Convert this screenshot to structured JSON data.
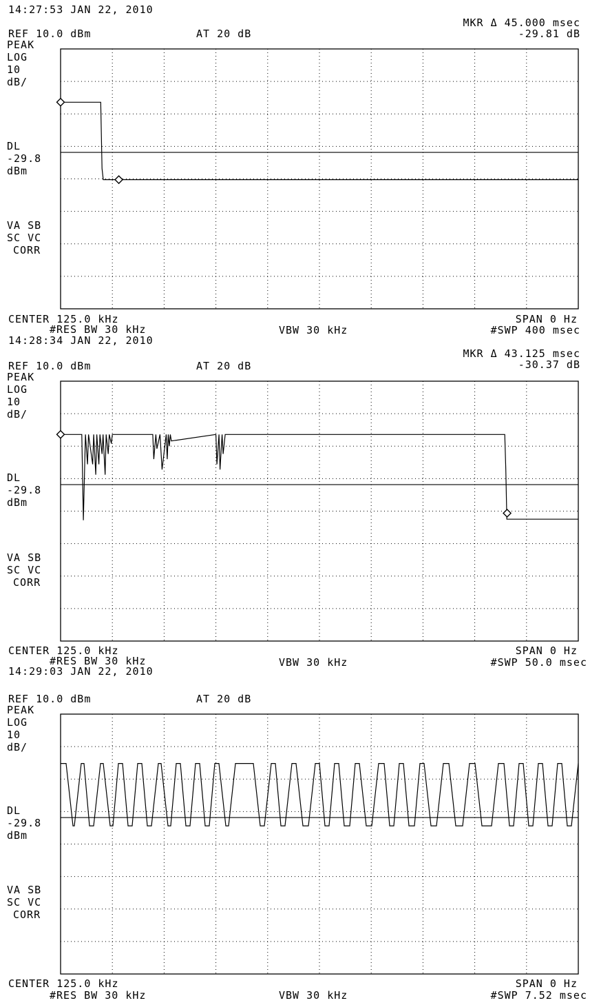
{
  "colors": {
    "background": "#ffffff",
    "trace": "#000000",
    "grid": "#000000"
  },
  "panels": [
    {
      "timestamp": "14:27:53 JAN 22, 2010",
      "marker_line1": "MKR Δ 45.000 msec",
      "marker_line2": "-29.81 dB",
      "ref": "REF 10.0 dBm",
      "atten": "AT 20 dB",
      "left_labels": {
        "peak": "PEAK",
        "log": "LOG",
        "scale_num": "10",
        "scale_unit": "dB/",
        "dl": "DL",
        "dl_value": "-29.8",
        "dl_unit": "dBm",
        "va_sb": "VA SB",
        "sc_vc": "SC VC",
        "corr": "CORR"
      },
      "center": "CENTER 125.0 kHz",
      "span": "SPAN 0 Hz",
      "res_bw": "#RES BW 30 kHz",
      "vbw": "VBW 30 kHz",
      "swp": "#SWP 400 msec"
    },
    {
      "timestamp": "14:28:34 JAN 22, 2010",
      "marker_line1": "MKR Δ 43.125 msec",
      "marker_line2": "-30.37 dB",
      "ref": "REF 10.0 dBm",
      "atten": "AT 20 dB",
      "left_labels": {
        "peak": "PEAK",
        "log": "LOG",
        "scale_num": "10",
        "scale_unit": "dB/",
        "dl": "DL",
        "dl_value": "-29.8",
        "dl_unit": "dBm",
        "va_sb": "VA SB",
        "sc_vc": "SC VC",
        "corr": "CORR"
      },
      "center": "CENTER 125.0 kHz",
      "span": "SPAN 0 Hz",
      "res_bw": "#RES BW 30 kHz",
      "vbw": "VBW 30 kHz",
      "swp": "#SWP 50.0 msec"
    },
    {
      "timestamp": "14:29:03 JAN 22, 2010",
      "marker_line1": "",
      "marker_line2": "",
      "ref": "REF 10.0 dBm",
      "atten": "AT 20 dB",
      "left_labels": {
        "peak": "PEAK",
        "log": "LOG",
        "scale_num": "10",
        "scale_unit": "dB/",
        "dl": "DL",
        "dl_value": "-29.8",
        "dl_unit": "dBm",
        "va_sb": "VA SB",
        "sc_vc": "SC VC",
        "corr": "CORR"
      },
      "center": "CENTER 125.0 kHz",
      "span": "SPAN 0 Hz",
      "res_bw": "#RES BW 30 kHz",
      "vbw": "VBW 30 kHz",
      "swp": "#SWP 7.52 msec"
    }
  ],
  "chart_data": [
    {
      "type": "line",
      "x_unit": "msec",
      "xlim": [
        0,
        400
      ],
      "ylim": [
        -90,
        10
      ],
      "y_unit": "dBm",
      "display_line": -29.8,
      "grid": true,
      "series": [
        {
          "x": [
            0,
            31,
            32,
            33,
            400
          ],
          "y": [
            -10.5,
            -10.5,
            -36,
            -40.3,
            -40.3
          ]
        }
      ],
      "markers": [
        {
          "x": 0,
          "y": -10.5
        },
        {
          "x": 45,
          "y": -40.3
        }
      ]
    },
    {
      "type": "line",
      "x_unit": "msec",
      "xlim": [
        0,
        50
      ],
      "ylim": [
        -90,
        10
      ],
      "y_unit": "dBm",
      "display_line": -29.8,
      "grid": true,
      "series": [
        {
          "x": [
            0,
            2.05,
            2.2,
            2.4,
            2.6,
            2.7,
            3.1,
            3.2,
            3.4,
            3.5,
            3.7,
            3.8,
            4.0,
            4.1,
            4.3,
            4.4,
            4.6,
            4.7,
            4.9,
            5.0,
            8.9,
            9.0,
            9.2,
            9.3,
            9.6,
            9.8,
            10.2,
            10.3,
            10.4,
            10.5,
            10.6,
            10.7,
            15.0,
            15.1,
            15.3,
            15.4,
            15.6,
            15.7,
            15.9,
            16.0,
            37.0,
            38.0,
            42.9,
            43.0,
            43.1,
            50.0
          ],
          "y": [
            -10.5,
            -10.5,
            -43.5,
            -10.5,
            -22,
            -10.5,
            -22,
            -10.5,
            -26,
            -10.5,
            -22,
            -10.5,
            -18,
            -10.5,
            -26,
            -10.5,
            -18,
            -10.5,
            -14,
            -10.5,
            -10.5,
            -20,
            -10.5,
            -16,
            -10.5,
            -24,
            -10.5,
            -20,
            -10.5,
            -15,
            -10.5,
            -13,
            -10.5,
            -22,
            -10.5,
            -24,
            -10.5,
            -18,
            -10.5,
            -10.5,
            -10.5,
            -10.5,
            -10.5,
            -24,
            -43.1,
            -43.1
          ]
        }
      ],
      "markers": [
        {
          "x": 0,
          "y": -10.5
        },
        {
          "x": 43.125,
          "y": -40.8
        }
      ]
    },
    {
      "type": "line",
      "x_unit": "msec",
      "xlim": [
        0,
        7.52
      ],
      "ylim": [
        -90,
        10
      ],
      "y_unit": "dBm",
      "display_line": -29.8,
      "grid": true,
      "series": [
        {
          "x": [
            0.0,
            0.08,
            0.18,
            0.2,
            0.3,
            0.34,
            0.42,
            0.48,
            0.58,
            0.62,
            0.72,
            0.76,
            0.84,
            0.9,
            0.98,
            1.04,
            1.12,
            1.18,
            1.26,
            1.32,
            1.42,
            1.46,
            1.56,
            1.6,
            1.68,
            1.74,
            1.82,
            1.88,
            1.96,
            2.02,
            2.1,
            2.16,
            2.24,
            2.3,
            2.4,
            2.44,
            2.54,
            2.8,
            2.9,
            2.96,
            3.06,
            3.12,
            3.2,
            3.26,
            3.36,
            3.42,
            3.52,
            3.6,
            3.7,
            3.76,
            3.84,
            3.9,
            3.98,
            4.04,
            4.12,
            4.2,
            4.28,
            4.34,
            4.44,
            4.52,
            4.62,
            4.7,
            4.78,
            4.84,
            4.92,
            4.98,
            5.06,
            5.14,
            5.22,
            5.28,
            5.38,
            5.46,
            5.56,
            5.64,
            5.74,
            5.84,
            5.94,
            6.02,
            6.12,
            6.26,
            6.36,
            6.44,
            6.52,
            6.58,
            6.66,
            6.72,
            6.8,
            6.86,
            6.94,
            7.0,
            7.08,
            7.14,
            7.22,
            7.28,
            7.36,
            7.42,
            7.52
          ],
          "y": [
            -9,
            -9,
            -33,
            -33,
            -9,
            -9,
            -33,
            -33,
            -9,
            -9,
            -33,
            -33,
            -9,
            -9,
            -33,
            -33,
            -9,
            -9,
            -33,
            -33,
            -9,
            -9,
            -33,
            -33,
            -9,
            -9,
            -33,
            -33,
            -9,
            -9,
            -33,
            -33,
            -9,
            -9,
            -33,
            -33,
            -9,
            -9,
            -33,
            -33,
            -9,
            -9,
            -33,
            -33,
            -9,
            -9,
            -33,
            -33,
            -9,
            -9,
            -33,
            -33,
            -9,
            -9,
            -33,
            -33,
            -9,
            -9,
            -33,
            -33,
            -9,
            -9,
            -33,
            -33,
            -9,
            -9,
            -33,
            -33,
            -9,
            -9,
            -33,
            -33,
            -9,
            -9,
            -33,
            -33,
            -9,
            -9,
            -33,
            -33,
            -9,
            -9,
            -33,
            -33,
            -9,
            -9,
            -33,
            -33,
            -9,
            -9,
            -33,
            -33,
            -9,
            -9,
            -33,
            -33,
            -9
          ]
        }
      ],
      "markers": []
    }
  ]
}
